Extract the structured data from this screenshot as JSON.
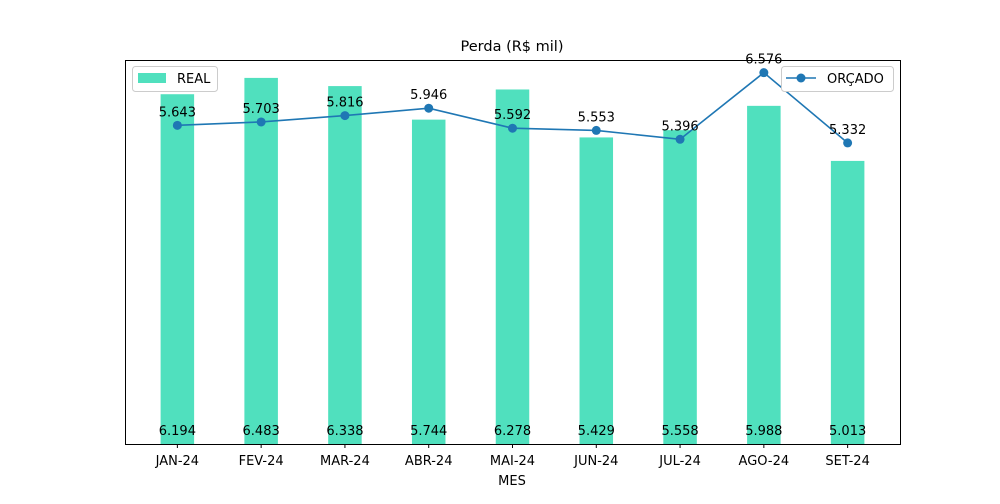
{
  "chart_data": {
    "type": "bar",
    "title": "Perda (R$ mil)",
    "xlabel": "MES",
    "ylabel": "",
    "categories": [
      "JAN-24",
      "FEV-24",
      "MAR-24",
      "ABR-24",
      "MAI-24",
      "JUN-24",
      "JUL-24",
      "AGO-24",
      "SET-24"
    ],
    "ylim": [
      0,
      6.8
    ],
    "grid": false,
    "series": [
      {
        "name": "REAL",
        "type": "bar",
        "color": "#50e0be",
        "values": [
          6.194,
          6.483,
          6.338,
          5.744,
          6.278,
          5.429,
          5.558,
          5.988,
          5.013
        ],
        "labels": [
          "6.194",
          "6.483",
          "6.338",
          "5.744",
          "6.278",
          "5.429",
          "5.558",
          "5.988",
          "5.013"
        ],
        "label_position": "bottom"
      },
      {
        "name": "ORÇADO",
        "type": "line",
        "marker": "circle",
        "color": "#1f77b4",
        "values": [
          5.643,
          5.703,
          5.816,
          5.946,
          5.592,
          5.553,
          5.396,
          6.576,
          5.332
        ],
        "labels": [
          "5.643",
          "5.703",
          "5.816",
          "5.946",
          "5.592",
          "5.553",
          "5.396",
          "6.576",
          "5.332"
        ],
        "label_position": "above"
      }
    ],
    "legends": [
      {
        "series": "REAL",
        "placement": "upper-left"
      },
      {
        "series": "ORÇADO",
        "placement": "upper-right"
      }
    ]
  }
}
